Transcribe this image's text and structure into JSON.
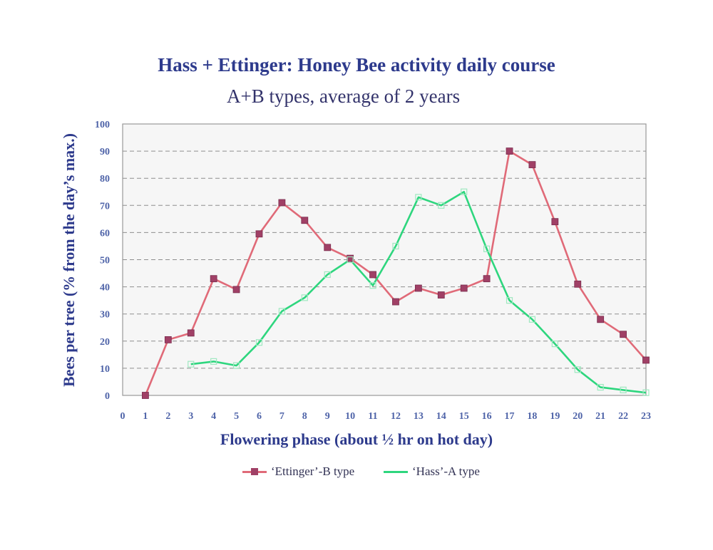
{
  "chart_data": {
    "type": "line",
    "title": "Hass + Ettinger: Honey Bee activity daily course",
    "subtitle": "A+B types, average of 2 years",
    "xlabel": "Flowering phase (about ½ hr on hot day)",
    "ylabel": "Bees per tree (% from the day’s max.)",
    "xlim": [
      0,
      23
    ],
    "ylim": [
      0,
      100
    ],
    "x_ticks": [
      0,
      1,
      2,
      3,
      4,
      5,
      6,
      7,
      8,
      9,
      10,
      11,
      12,
      13,
      14,
      15,
      16,
      17,
      18,
      19,
      20,
      21,
      22,
      23
    ],
    "y_ticks": [
      0,
      10,
      20,
      30,
      40,
      50,
      60,
      70,
      80,
      90,
      100
    ],
    "grid": "horizontal dashed",
    "legend_position": "bottom",
    "series": [
      {
        "name": "‘Ettinger’-B type",
        "color": "#e06a78",
        "marker_color": "#a04066",
        "marker": "filled-square",
        "x": [
          1,
          2,
          3,
          4,
          5,
          6,
          7,
          8,
          9,
          10,
          11,
          12,
          13,
          14,
          15,
          16,
          17,
          18,
          19,
          20,
          21,
          22,
          23
        ],
        "y": [
          0,
          20.5,
          23,
          43,
          39,
          59.5,
          71,
          64.5,
          54.5,
          50.5,
          44.5,
          34.5,
          39.5,
          37,
          39.5,
          43,
          90,
          85,
          64,
          41,
          28,
          22.5,
          13
        ]
      },
      {
        "name": "‘Hass’-A type",
        "color": "#2ed67e",
        "marker_color": "#9fe8c0",
        "marker": "hollow-square",
        "x": [
          3,
          4,
          5,
          6,
          7,
          8,
          9,
          10,
          11,
          12,
          13,
          14,
          15,
          16,
          17,
          18,
          19,
          20,
          21,
          22,
          23
        ],
        "y": [
          11.5,
          12.5,
          11,
          19.5,
          31,
          36,
          44.5,
          50,
          40.5,
          55,
          73,
          70,
          75,
          54,
          35,
          28,
          19,
          9.5,
          3,
          2,
          1
        ]
      }
    ]
  }
}
